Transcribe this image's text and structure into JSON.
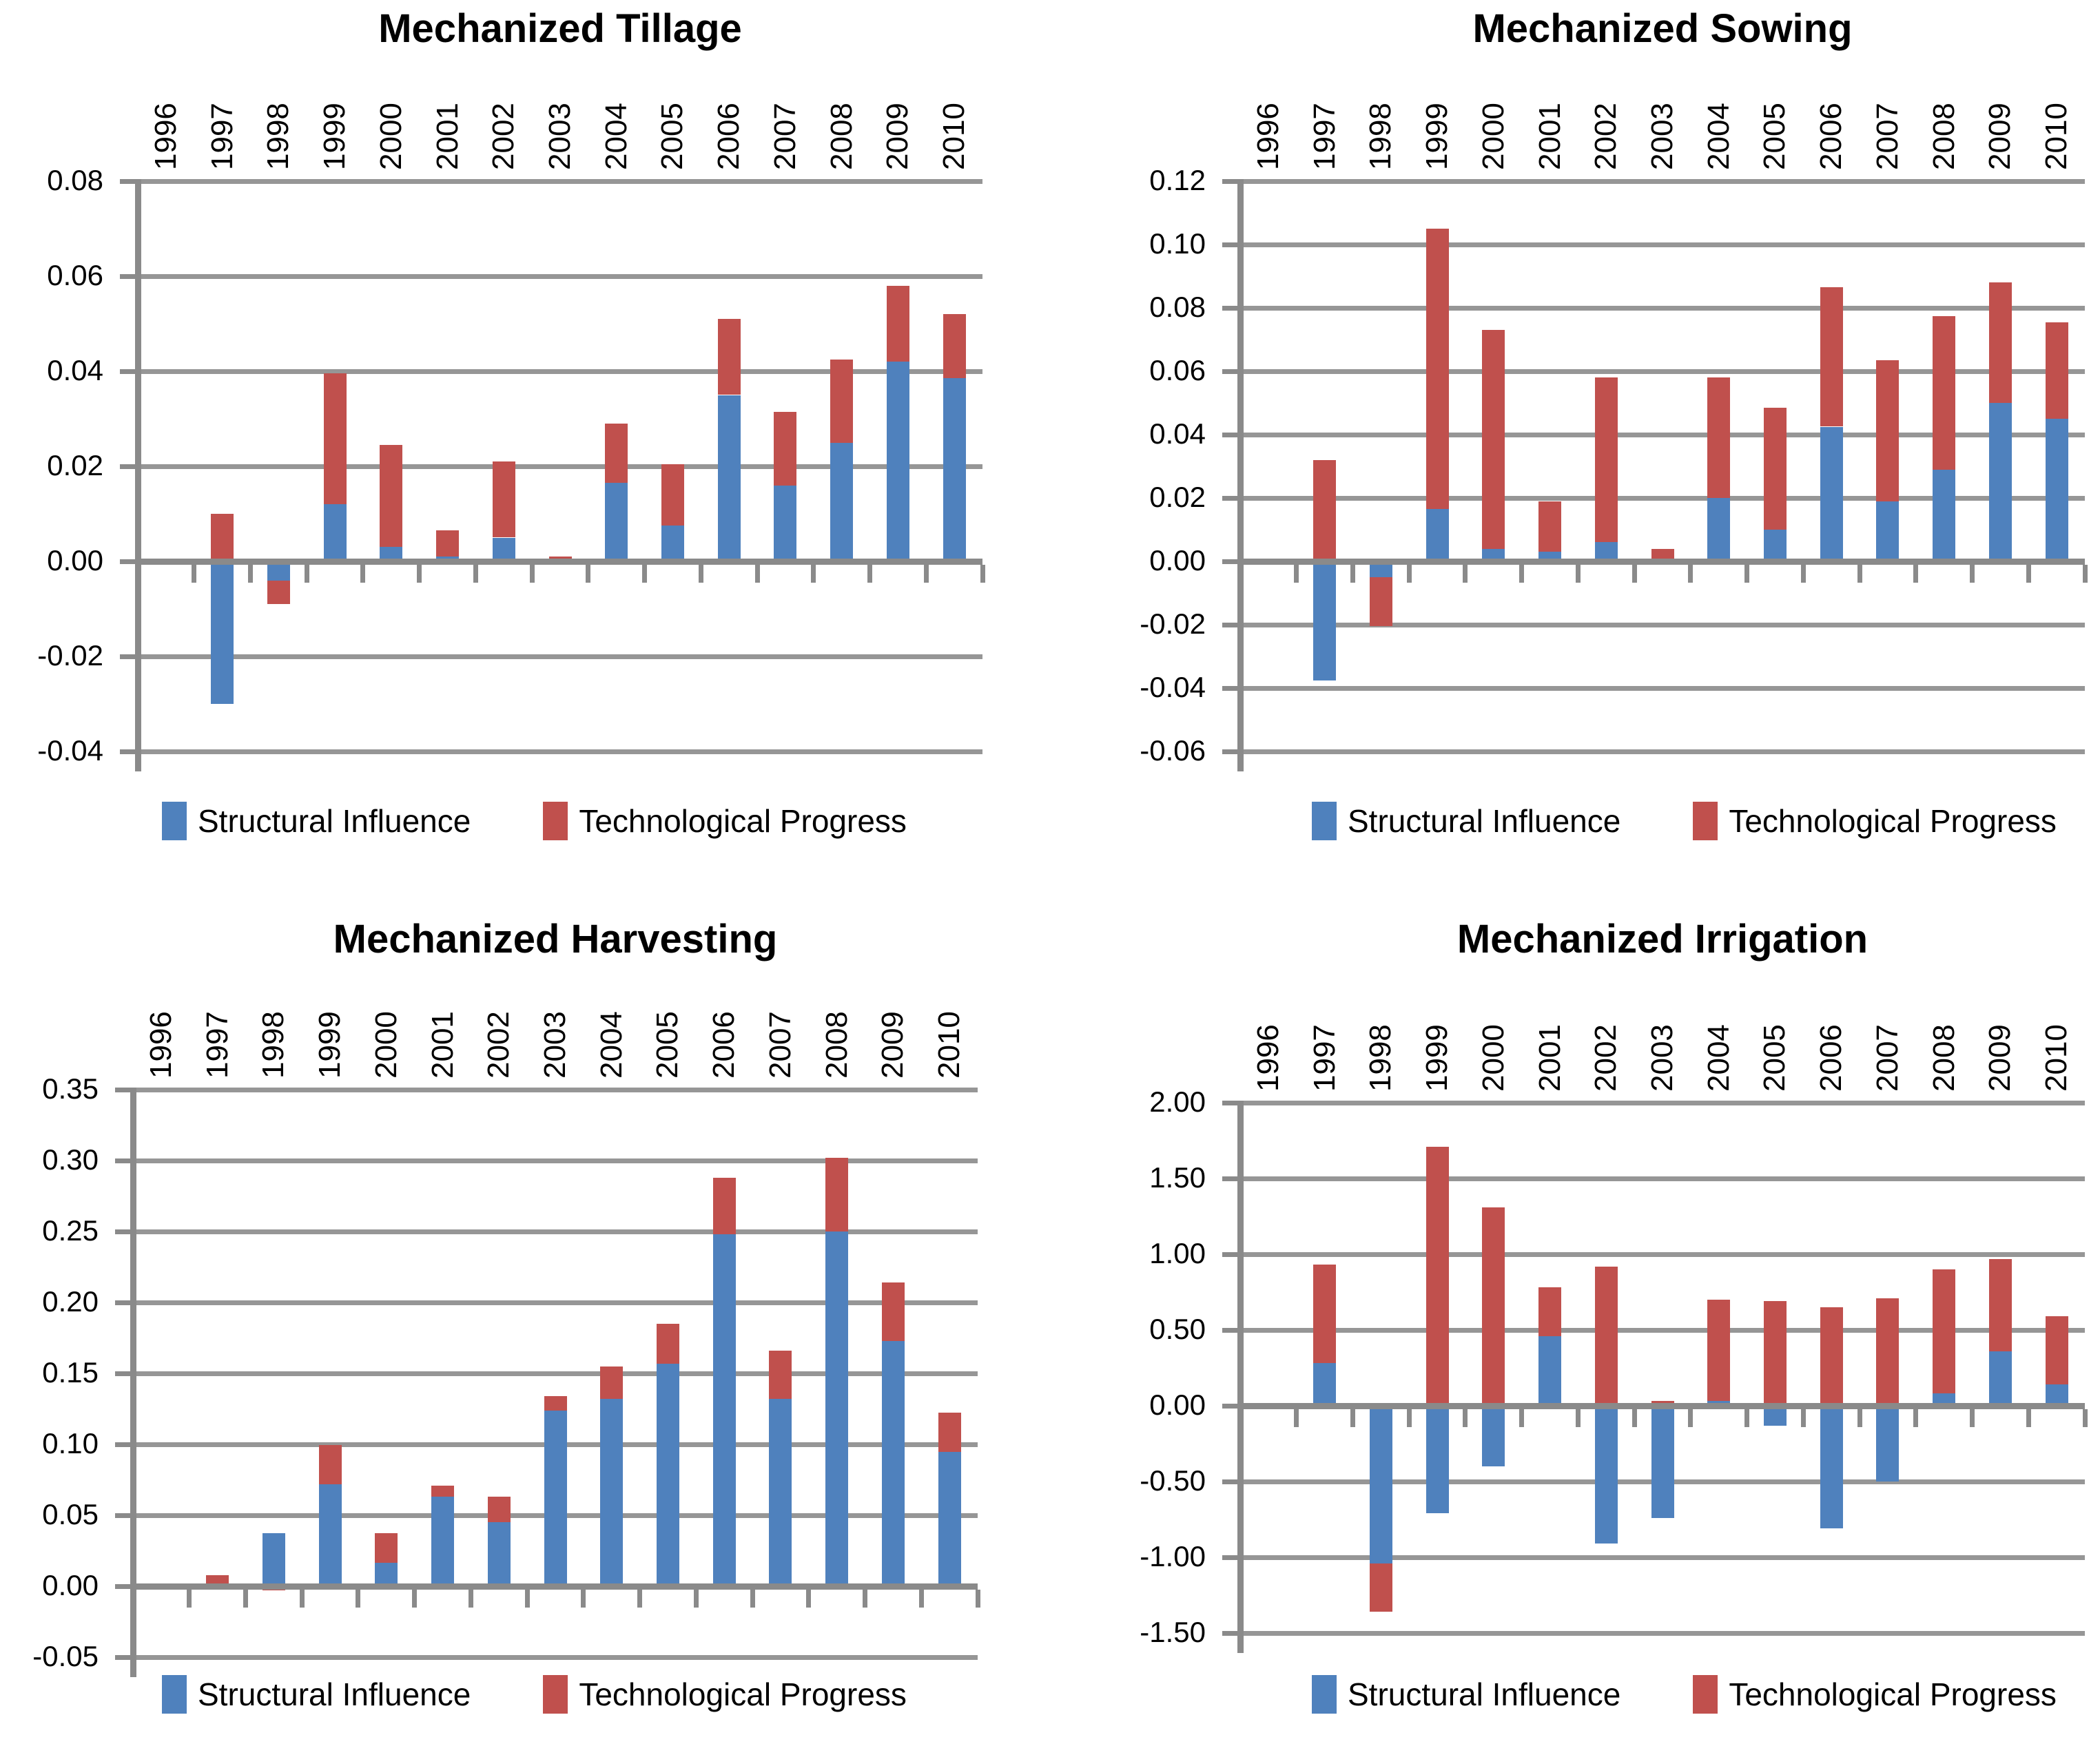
{
  "page": {
    "background_color": "#FFFFFF"
  },
  "styles": {
    "bar_blue": "#4F81BD",
    "bar_red": "#C0504D",
    "gridline_color": "#969696",
    "axis_color": "#8A8A8A",
    "text_color": "#000000"
  },
  "chart_data": [
    {
      "type": "bar",
      "stacked": true,
      "title": "Mechanized Tillage",
      "xlabel": "",
      "ylabel": "",
      "categories": [
        "1996",
        "1997",
        "1998",
        "1999",
        "2000",
        "2001",
        "2002",
        "2003",
        "2004",
        "2005",
        "2006",
        "2007",
        "2008",
        "2009",
        "2010"
      ],
      "series": [
        {
          "name": "Structural Influence",
          "color": "#4F81BD",
          "values": [
            0,
            -0.03,
            -0.004,
            0.012,
            0.003,
            0.001,
            0.005,
            0,
            0.0165,
            0.0075,
            0.035,
            0.016,
            0.025,
            0.042,
            0.0385
          ]
        },
        {
          "name": "Technological Progress",
          "color": "#C0504D",
          "values": [
            0,
            0.01,
            -0.005,
            0.0275,
            0.0215,
            0.0055,
            0.016,
            0.001,
            0.0125,
            0.013,
            0.016,
            0.0155,
            0.0175,
            0.016,
            0.0135
          ]
        }
      ],
      "ylim": [
        -0.04,
        0.08
      ],
      "ytick_step": 0.02,
      "ytick_labels": [
        "0.08",
        "0.06",
        "0.04",
        "0.02",
        "0.00",
        "-0.02",
        "-0.04"
      ],
      "grid": true,
      "legend_position": "bottom",
      "x_labels_position": "top",
      "x_labels_rotation": 90
    },
    {
      "type": "bar",
      "stacked": true,
      "title": "Mechanized Sowing",
      "xlabel": "",
      "ylabel": "",
      "categories": [
        "1996",
        "1997",
        "1998",
        "1999",
        "2000",
        "2001",
        "2002",
        "2003",
        "2004",
        "2005",
        "2006",
        "2007",
        "2008",
        "2009",
        "2010"
      ],
      "series": [
        {
          "name": "Structural Influence",
          "color": "#4F81BD",
          "values": [
            0,
            -0.0375,
            -0.005,
            0.0165,
            0.004,
            0.003,
            0.006,
            0,
            0.02,
            0.01,
            0.0425,
            0.019,
            0.029,
            0.05,
            0.045
          ]
        },
        {
          "name": "Technological Progress",
          "color": "#C0504D",
          "values": [
            0,
            0.032,
            -0.0155,
            0.0885,
            0.069,
            0.016,
            0.052,
            0.004,
            0.038,
            0.0385,
            0.044,
            0.0445,
            0.0485,
            0.038,
            0.0305
          ]
        }
      ],
      "ylim": [
        -0.06,
        0.12
      ],
      "ytick_step": 0.02,
      "ytick_labels": [
        "0.12",
        "0.10",
        "0.08",
        "0.06",
        "0.04",
        "0.02",
        "0.00",
        "-0.02",
        "-0.04",
        "-0.06"
      ],
      "grid": true,
      "legend_position": "bottom",
      "x_labels_position": "top",
      "x_labels_rotation": 90
    },
    {
      "type": "bar",
      "stacked": true,
      "title": "Mechanized Harvesting",
      "xlabel": "",
      "ylabel": "",
      "categories": [
        "1996",
        "1997",
        "1998",
        "1999",
        "2000",
        "2001",
        "2002",
        "2003",
        "2004",
        "2005",
        "2006",
        "2007",
        "2008",
        "2009",
        "2010"
      ],
      "series": [
        {
          "name": "Structural Influence",
          "color": "#4F81BD",
          "values": [
            0,
            0,
            0.0375,
            0.072,
            0.0165,
            0.063,
            0.045,
            0.124,
            0.132,
            0.157,
            0.248,
            0.132,
            0.25,
            0.173,
            0.0945
          ]
        },
        {
          "name": "Technological Progress",
          "color": "#C0504D",
          "values": [
            0,
            0.008,
            -0.003,
            0.0275,
            0.021,
            0.008,
            0.018,
            0.01,
            0.023,
            0.028,
            0.04,
            0.034,
            0.052,
            0.041,
            0.028
          ]
        }
      ],
      "ylim": [
        -0.05,
        0.35
      ],
      "ytick_step": 0.05,
      "ytick_labels": [
        "0.35",
        "0.30",
        "0.25",
        "0.20",
        "0.15",
        "0.10",
        "0.05",
        "0.00",
        "-0.05"
      ],
      "grid": true,
      "legend_position": "bottom",
      "x_labels_position": "top",
      "x_labels_rotation": 90
    },
    {
      "type": "bar",
      "stacked": true,
      "title": "Mechanized Irrigation",
      "xlabel": "",
      "ylabel": "",
      "categories": [
        "1996",
        "1997",
        "1998",
        "1999",
        "2000",
        "2001",
        "2002",
        "2003",
        "2004",
        "2005",
        "2006",
        "2007",
        "2008",
        "2009",
        "2010"
      ],
      "series": [
        {
          "name": "Structural Influence",
          "color": "#4F81BD",
          "values": [
            0,
            0.28,
            -1.04,
            -0.71,
            -0.4,
            0.46,
            -0.91,
            -0.74,
            0.03,
            -0.13,
            -0.81,
            -0.5,
            0.08,
            0.36,
            0.14
          ]
        },
        {
          "name": "Technological Progress",
          "color": "#C0504D",
          "values": [
            0,
            0.65,
            -0.32,
            1.71,
            1.31,
            0.32,
            0.92,
            0.03,
            0.67,
            0.69,
            0.65,
            0.71,
            0.82,
            0.61,
            0.45
          ]
        }
      ],
      "ylim": [
        -1.5,
        2.0
      ],
      "ytick_step": 0.5,
      "ytick_labels": [
        "2.00",
        "1.50",
        "1.00",
        "0.50",
        "0.00",
        "-0.50",
        "-1.00",
        "-1.50"
      ],
      "grid": true,
      "legend_position": "bottom",
      "x_labels_position": "top",
      "x_labels_rotation": 90
    }
  ]
}
